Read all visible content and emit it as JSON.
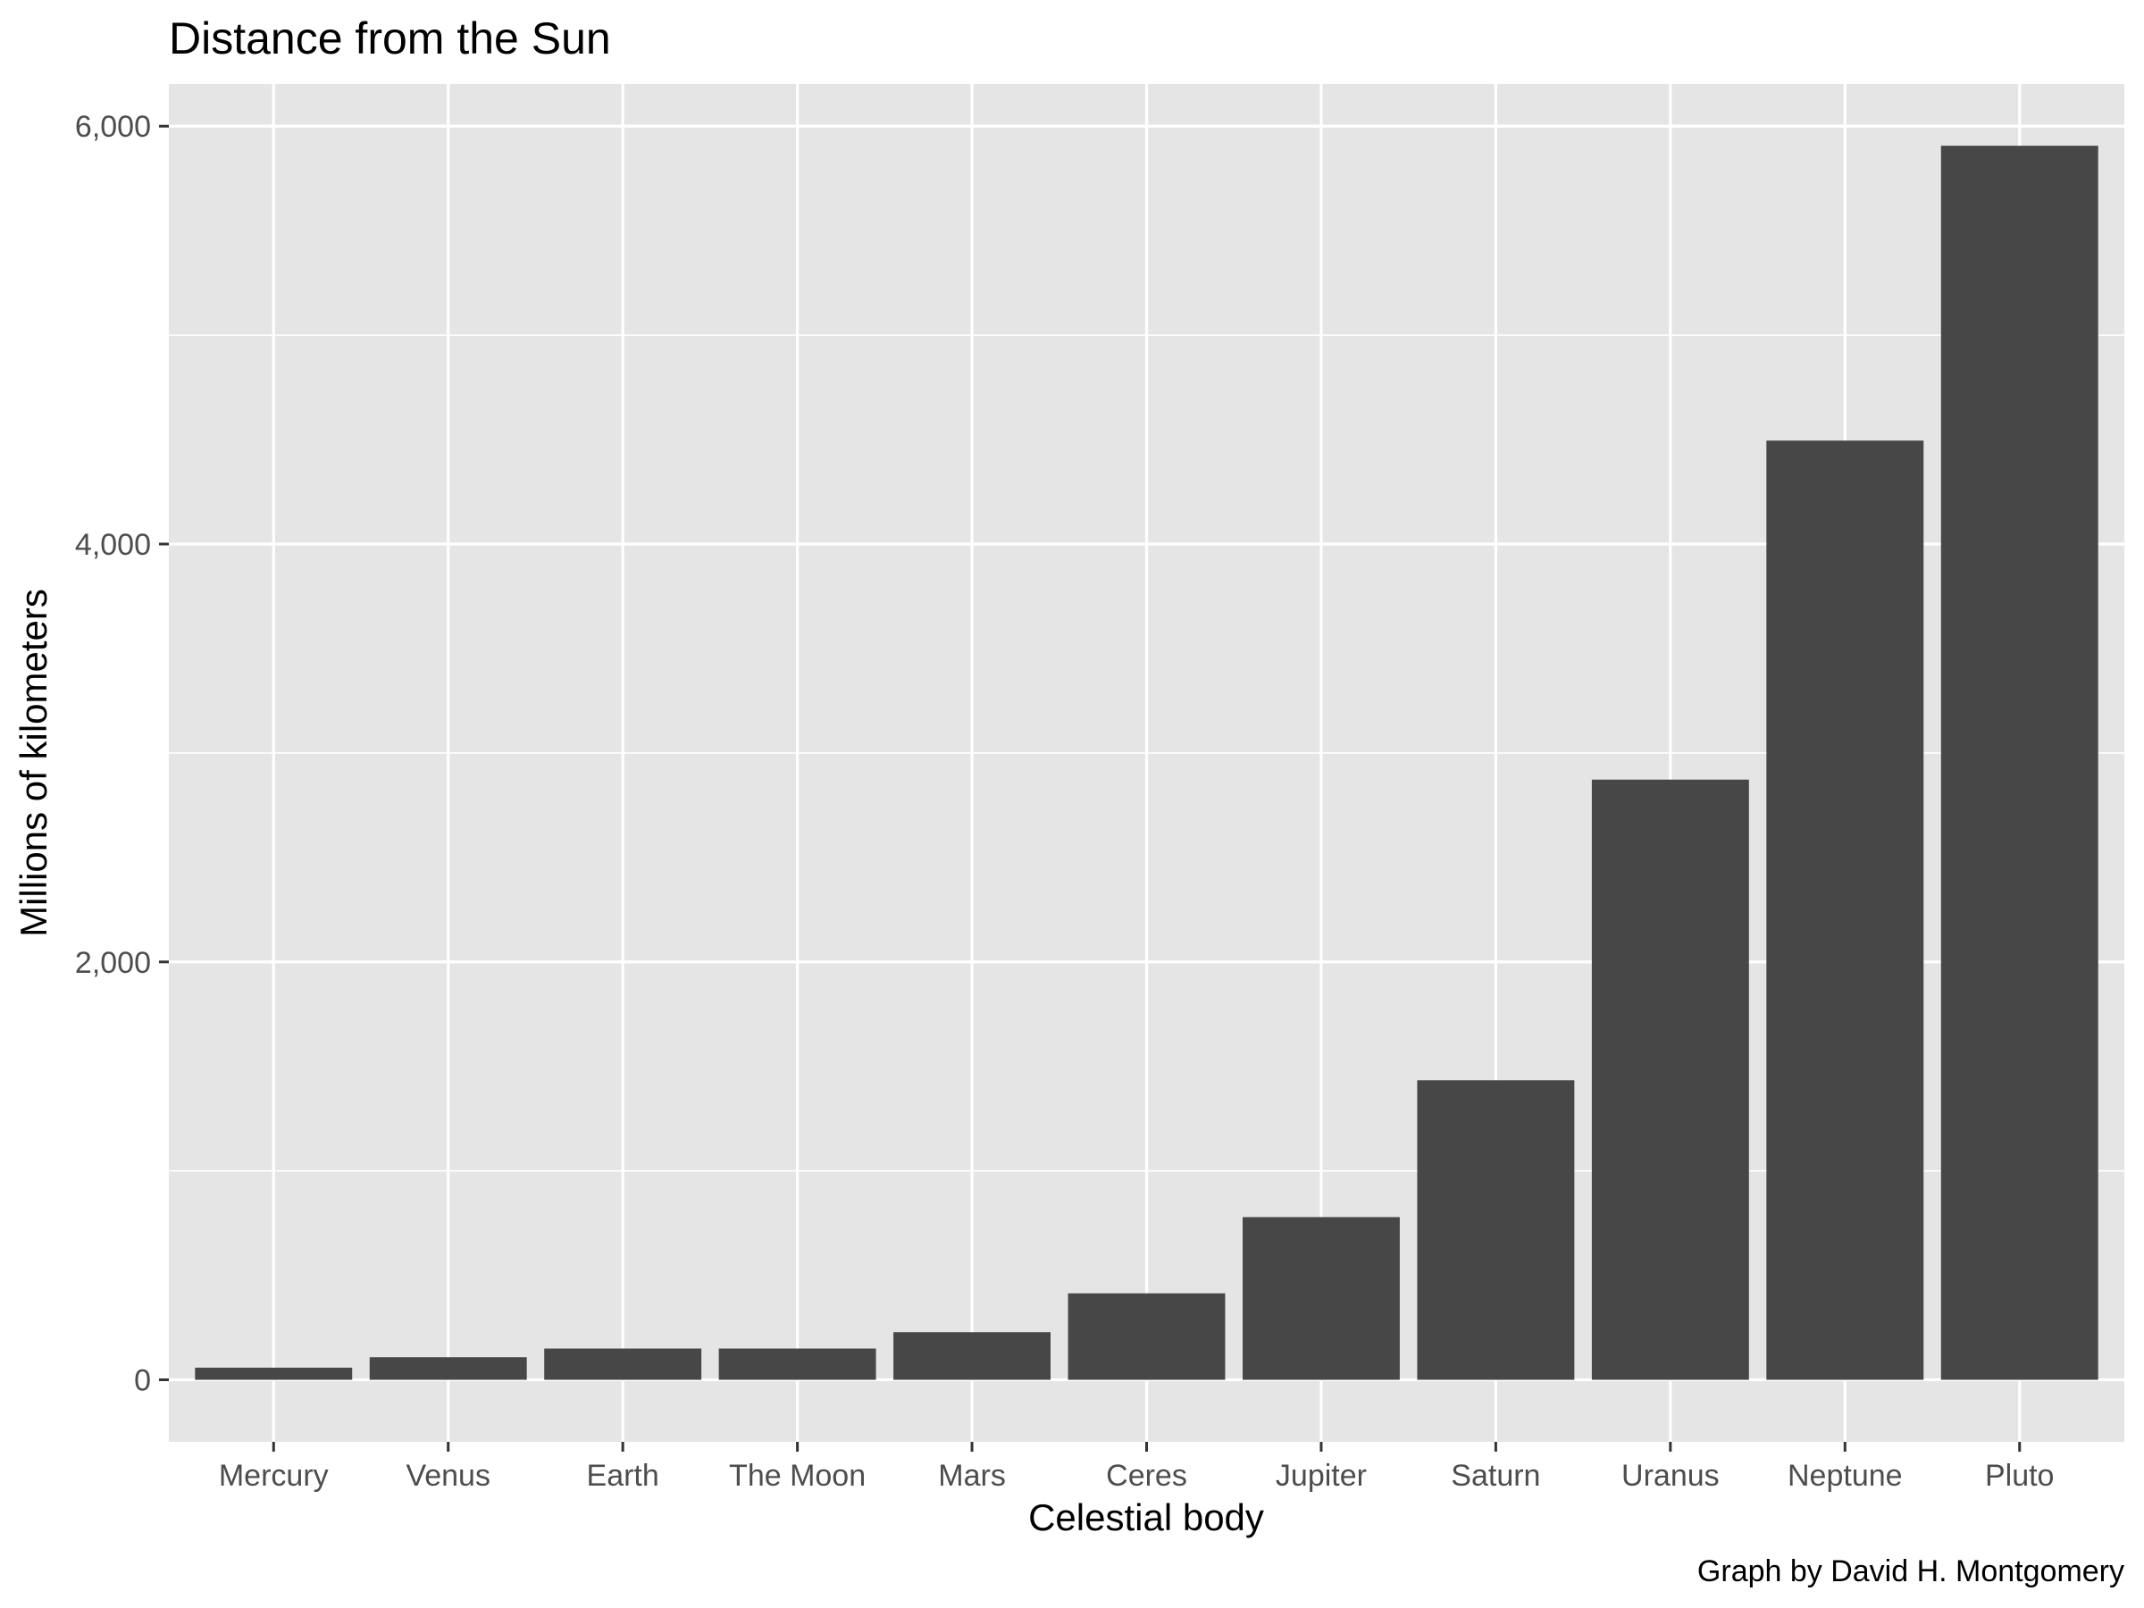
{
  "chart_data": {
    "type": "bar",
    "title": "Distance from the Sun",
    "xlabel": "Celestial body",
    "ylabel": "Millions of kilometers",
    "caption": "Graph by David H. Montgomery",
    "categories": [
      "Mercury",
      "Venus",
      "Earth",
      "The Moon",
      "Mars",
      "Ceres",
      "Jupiter",
      "Saturn",
      "Uranus",
      "Neptune",
      "Pluto"
    ],
    "values": [
      57.9,
      108.2,
      149.6,
      149.6,
      227.9,
      413.7,
      778.6,
      1433.5,
      2872.5,
      4495.1,
      5906.4
    ],
    "y_ticks": [
      0,
      2000,
      4000,
      6000
    ],
    "y_tick_labels": [
      "0",
      "2,000",
      "4,000",
      "6,000"
    ],
    "ylim": [
      -297,
      6202
    ],
    "grid": true,
    "legend": "none",
    "colors": {
      "bar": "#474747",
      "panel_background": "#e5e5e5",
      "grid": "#ffffff",
      "tick_text": "#4d4d4d",
      "tick_mark": "#333333"
    }
  }
}
